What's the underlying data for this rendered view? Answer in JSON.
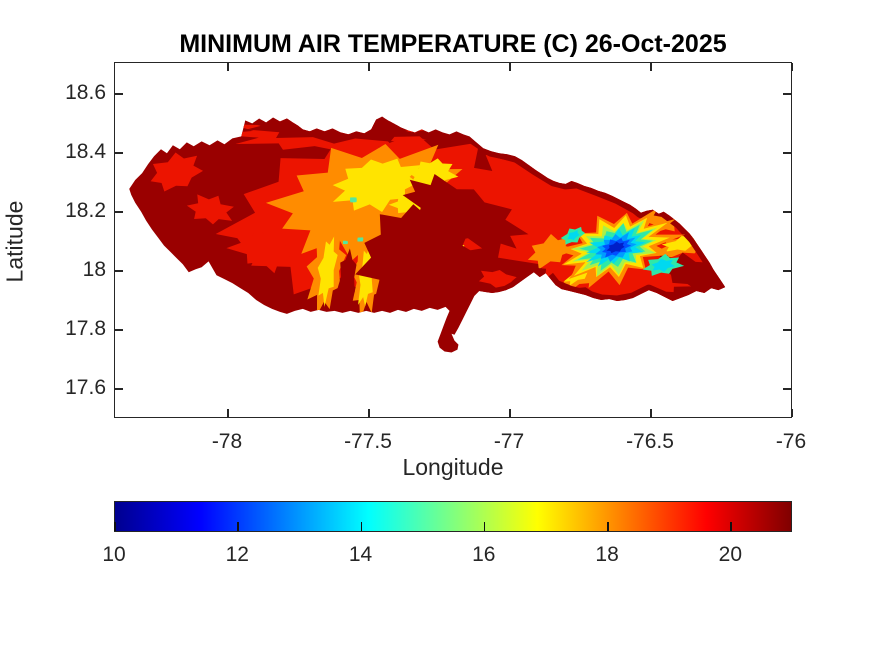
{
  "figure": {
    "title": "MINIMUM AIR TEMPERATURE (C) 26-Oct-2025",
    "xlabel": "Longitude",
    "ylabel": "Latitude"
  },
  "axes": {
    "x_tick_labels": [
      "-78",
      "-77.5",
      "-77",
      "-76.5",
      "-76"
    ],
    "y_tick_labels": [
      "18.6",
      "18.4",
      "18.2",
      "18",
      "17.8",
      "17.6"
    ],
    "x_range": [
      -78.4,
      -76.0
    ],
    "y_range": [
      17.5,
      18.7
    ]
  },
  "colorbar": {
    "tick_labels": [
      "10",
      "12",
      "14",
      "16",
      "18",
      "20"
    ],
    "tick_values": [
      10,
      12,
      14,
      16,
      18,
      20
    ],
    "min": 10,
    "max": 21,
    "colormap": "jet",
    "orientation": "horizontal"
  },
  "colors": {
    "axis": "#262626",
    "maroon": "#9A0000",
    "red": "#EC1400",
    "orange": "#FF8C00",
    "yellow": "#FFE400",
    "yellow_green": "#A8F04B",
    "aqua_green": "#2FE8A8",
    "pale_green": "#55E6A0",
    "cyan": "#00D9F0",
    "light_blue": "#009CFF",
    "blue": "#004FFF",
    "dark_blue": "#001FC8",
    "jet_stops": [
      "#00008F",
      "#0000FF",
      "#00FFFF",
      "#FFFF00",
      "#FF0000",
      "#800000"
    ]
  },
  "chart_data": {
    "type": "heatmap",
    "subtype": "filled-contour-map",
    "region": "Jamaica",
    "title": "MINIMUM AIR TEMPERATURE (C) 26-Oct-2025",
    "xlabel": "Longitude",
    "ylabel": "Latitude",
    "xlim": [
      -78.4,
      -76.0
    ],
    "ylim": [
      17.5,
      18.7
    ],
    "x_ticks": [
      -78,
      -77.5,
      -77,
      -76.5,
      -76
    ],
    "y_ticks": [
      18.6,
      18.4,
      18.2,
      18,
      17.8,
      17.6
    ],
    "colorbar_range": [
      10,
      21
    ],
    "colorbar_ticks": [
      10,
      12,
      14,
      16,
      18,
      20
    ],
    "colormap": "jet",
    "units": "degrees Celsius",
    "features": [
      {
        "area": "coastal fringe, west end and south-central coast",
        "lon": -78.2,
        "lat": 18.3,
        "approx_temp_c": 20.5
      },
      {
        "area": "western interior uplands (orange/yellow zone)",
        "lon": -77.4,
        "lat": 18.3,
        "approx_temp_c": 16.5
      },
      {
        "area": "southwest valley streaks reaching south coast",
        "lon": -77.7,
        "lat": 18.0,
        "approx_temp_c": 16.5
      },
      {
        "area": "central dark-red lowland wedge",
        "lon": -77.3,
        "lat": 18.05,
        "approx_temp_c": 21
      },
      {
        "area": "Blue Mountains cold core (dark blue)",
        "lon": -76.6,
        "lat": 18.05,
        "approx_temp_c": 10.5
      },
      {
        "area": "rings around Blue Mountains (cyan-green-yellow)",
        "lon": -76.6,
        "lat": 18.05,
        "approx_temp_c": 13.5
      },
      {
        "area": "secondary cool spot east of main core",
        "lon": -76.45,
        "lat": 18.0,
        "approx_temp_c": 14
      },
      {
        "area": "northeast and southeast coastal band",
        "lon": -76.4,
        "lat": 18.2,
        "approx_temp_c": 21
      }
    ]
  }
}
